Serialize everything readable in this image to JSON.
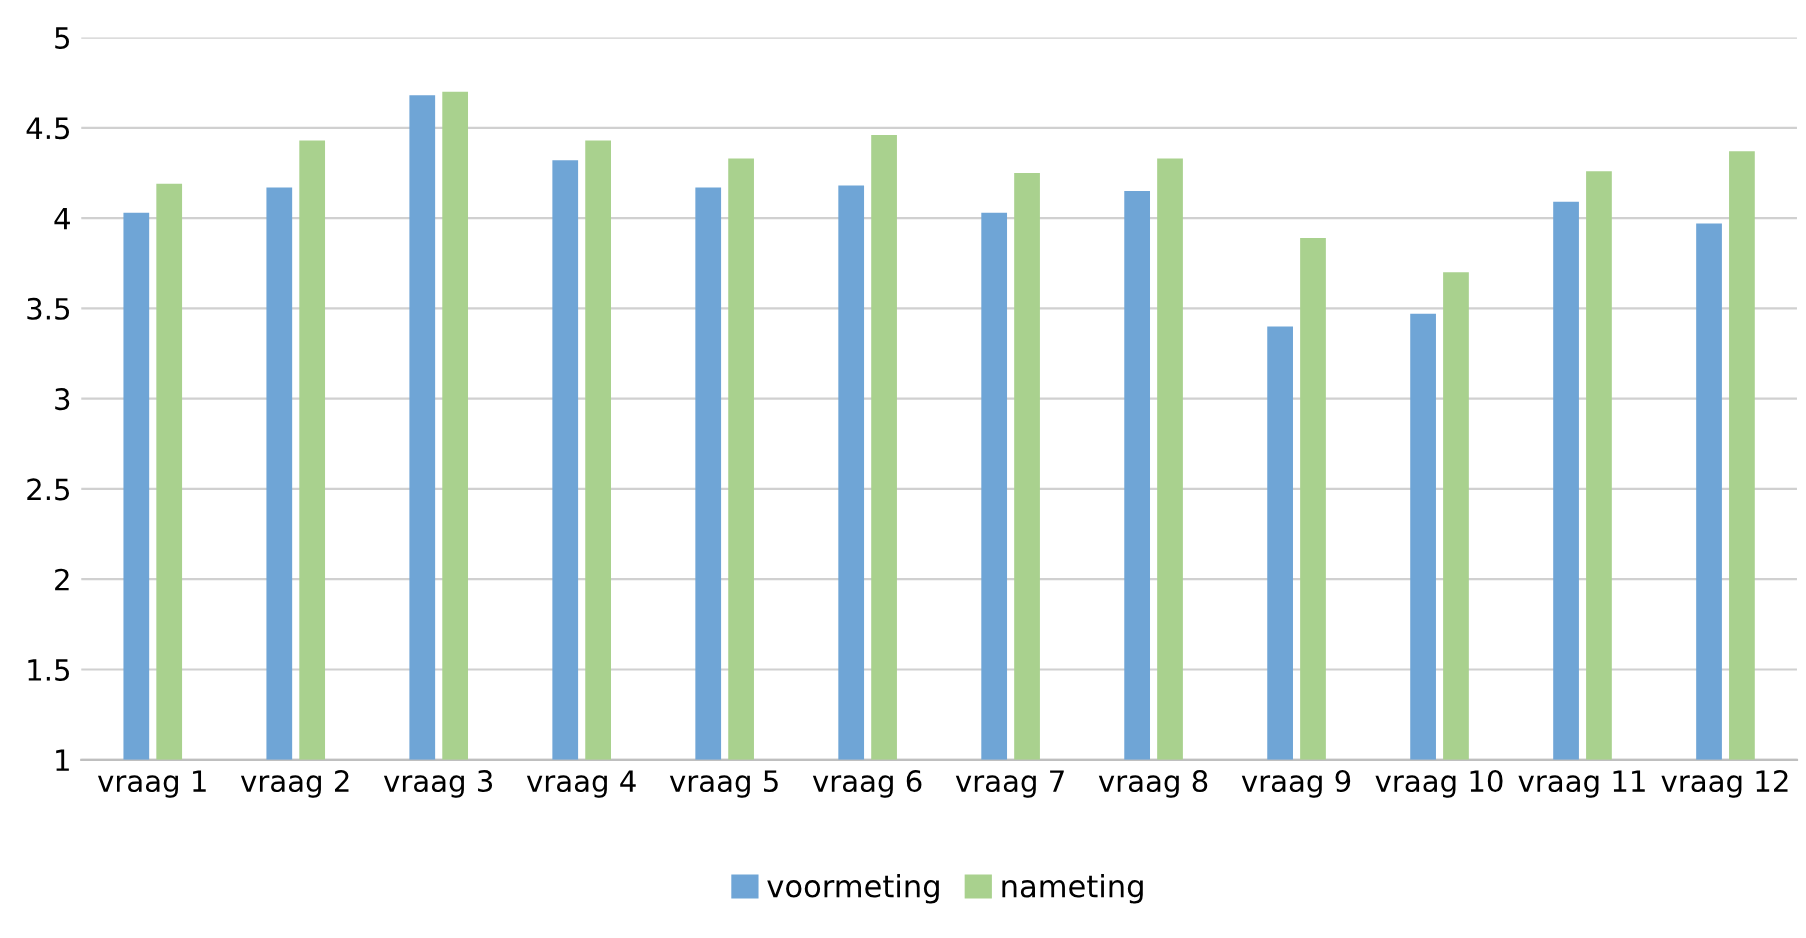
{
  "chart_data": {
    "type": "bar",
    "categories": [
      "vraag 1",
      "vraag 2",
      "vraag 3",
      "vraag 4",
      "vraag 5",
      "vraag 6",
      "vraag 7",
      "vraag 8",
      "vraag 9",
      "vraag 10",
      "vraag 11",
      "vraag 12"
    ],
    "series": [
      {
        "name": "voormeting",
        "color": "#6fa5d6",
        "values": [
          4.03,
          4.17,
          4.68,
          4.32,
          4.17,
          4.18,
          4.03,
          4.15,
          3.4,
          3.47,
          4.09,
          3.97
        ]
      },
      {
        "name": "nameting",
        "color": "#a9d18e",
        "values": [
          4.19,
          4.43,
          4.7,
          4.43,
          4.33,
          4.46,
          4.25,
          4.33,
          3.89,
          3.7,
          4.26,
          4.37
        ]
      }
    ],
    "ylim": [
      1,
      5
    ],
    "yticks": [
      1,
      1.5,
      2,
      2.5,
      3,
      3.5,
      4,
      4.5,
      5
    ],
    "grid": "y",
    "legend": "bottom"
  }
}
